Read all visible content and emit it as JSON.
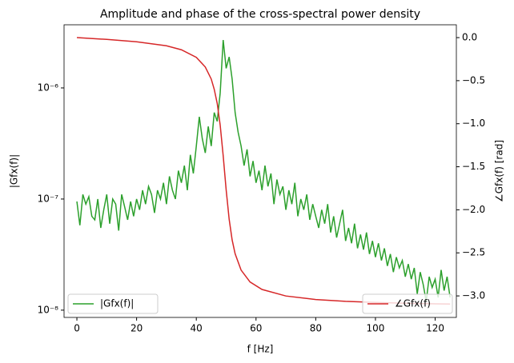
{
  "chart_data": {
    "type": "line",
    "title": "Amplitude and phase of the cross-spectral power density",
    "xlabel": "f [Hz]",
    "ylabel": "|Gfx(f)|",
    "y2label": "∠Gfx(f) [rad]",
    "xlim": [
      -4.3,
      127.1
    ],
    "xticks": [
      0,
      20,
      40,
      60,
      80,
      100,
      120
    ],
    "ylim": [
      8.6e-09,
      3.7e-06
    ],
    "yscale": "log",
    "yticks": [
      {
        "value": 1e-08,
        "label": "10⁻⁸"
      },
      {
        "value": 1e-07,
        "label": "10⁻⁷"
      },
      {
        "value": 1e-06,
        "label": "10⁻⁶"
      }
    ],
    "y2lim": [
      -3.25,
      0.149
    ],
    "y2ticks": [
      {
        "value": 0,
        "label": "0.0"
      },
      {
        "value": -0.5,
        "label": "−0.5"
      },
      {
        "value": -1,
        "label": "−1.0"
      },
      {
        "value": -1.5,
        "label": "−1.5"
      },
      {
        "value": -2,
        "label": "−2.0"
      },
      {
        "value": -2.5,
        "label": "−2.5"
      },
      {
        "value": -3,
        "label": "−3.0"
      }
    ],
    "series": [
      {
        "name": "|Gfx(f)|",
        "color": "#2ca02c",
        "axis": "y",
        "legend": "lower left",
        "x": [
          0,
          1,
          2,
          3,
          4,
          5,
          6,
          7,
          8,
          9,
          10,
          11,
          12,
          13,
          14,
          15,
          16,
          17,
          18,
          19,
          20,
          21,
          22,
          23,
          24,
          25,
          26,
          27,
          28,
          29,
          30,
          31,
          32,
          33,
          34,
          35,
          36,
          37,
          38,
          39,
          40,
          41,
          42,
          43,
          44,
          45,
          46,
          47,
          48,
          49,
          50,
          51,
          52,
          53,
          54,
          55,
          56,
          57,
          58,
          59,
          60,
          61,
          62,
          63,
          64,
          65,
          66,
          67,
          68,
          69,
          70,
          71,
          72,
          73,
          74,
          75,
          76,
          77,
          78,
          79,
          80,
          81,
          82,
          83,
          84,
          85,
          86,
          87,
          88,
          89,
          90,
          91,
          92,
          93,
          94,
          95,
          96,
          97,
          98,
          99,
          100,
          101,
          102,
          103,
          104,
          105,
          106,
          107,
          108,
          109,
          110,
          111,
          112,
          113,
          114,
          115,
          116,
          117,
          118,
          119,
          120,
          121,
          122,
          123,
          124,
          125
        ],
        "values": [
          9.5e-08,
          5.8e-08,
          1.1e-07,
          9e-08,
          1.05e-07,
          7e-08,
          6.5e-08,
          1e-07,
          5.5e-08,
          8e-08,
          1.1e-07,
          6e-08,
          1e-07,
          9e-08,
          5.2e-08,
          1.1e-07,
          8.5e-08,
          6.5e-08,
          9.5e-08,
          7e-08,
          1e-07,
          8e-08,
          1.2e-07,
          9e-08,
          1.3e-07,
          1.1e-07,
          7.5e-08,
          1.2e-07,
          1e-07,
          1.4e-07,
          9e-08,
          1.6e-07,
          1.2e-07,
          1e-07,
          1.8e-07,
          1.4e-07,
          2e-07,
          1.2e-07,
          2.5e-07,
          1.7e-07,
          3e-07,
          5.5e-07,
          3.5e-07,
          2.6e-07,
          4.5e-07,
          3e-07,
          6e-07,
          5e-07,
          9e-07,
          2.7e-06,
          1.5e-06,
          1.9e-06,
          1.2e-06,
          6e-07,
          4e-07,
          3e-07,
          2e-07,
          2.8e-07,
          1.6e-07,
          2.2e-07,
          1.4e-07,
          1.8e-07,
          1.2e-07,
          2e-07,
          1.3e-07,
          1.7e-07,
          9e-08,
          1.5e-07,
          1.1e-07,
          1.3e-07,
          8e-08,
          1.2e-07,
          9e-08,
          1.4e-07,
          7e-08,
          1e-07,
          8e-08,
          1.1e-07,
          6.5e-08,
          9e-08,
          7e-08,
          5.5e-08,
          8e-08,
          6e-08,
          9e-08,
          5e-08,
          7e-08,
          4.5e-08,
          6e-08,
          8e-08,
          4.2e-08,
          5.5e-08,
          4e-08,
          6e-08,
          3.6e-08,
          4.8e-08,
          3.5e-08,
          5e-08,
          3.2e-08,
          4.2e-08,
          3e-08,
          4e-08,
          2.8e-08,
          3.6e-08,
          2.5e-08,
          3.2e-08,
          2.2e-08,
          3e-08,
          2.4e-08,
          2.8e-08,
          2e-08,
          2.6e-08,
          1.9e-08,
          2.4e-08,
          1.4e-08,
          2.2e-08,
          1.7e-08,
          1.2e-08,
          2e-08,
          1.6e-08,
          1.9e-08,
          1.3e-08,
          2.3e-08,
          1.5e-08,
          2e-08,
          1.3e-08
        ]
      },
      {
        "name": "∠Gfx(f)",
        "color": "#d62728",
        "axis": "y2",
        "legend": "lower right",
        "x": [
          0,
          10,
          20,
          30,
          35,
          40,
          43,
          45,
          46,
          47,
          48,
          49,
          49.5,
          50,
          51,
          52,
          53,
          55,
          58,
          62,
          70,
          80,
          90,
          100,
          110,
          120,
          125
        ],
        "values": [
          0,
          -0.021,
          -0.048,
          -0.095,
          -0.141,
          -0.229,
          -0.341,
          -0.481,
          -0.6,
          -0.764,
          -1.017,
          -1.371,
          -1.571,
          -1.769,
          -2.109,
          -2.35,
          -2.511,
          -2.7,
          -2.838,
          -2.925,
          -3.001,
          -3.042,
          -3.063,
          -3.076,
          -3.085,
          -3.092,
          -3.095
        ]
      }
    ]
  }
}
